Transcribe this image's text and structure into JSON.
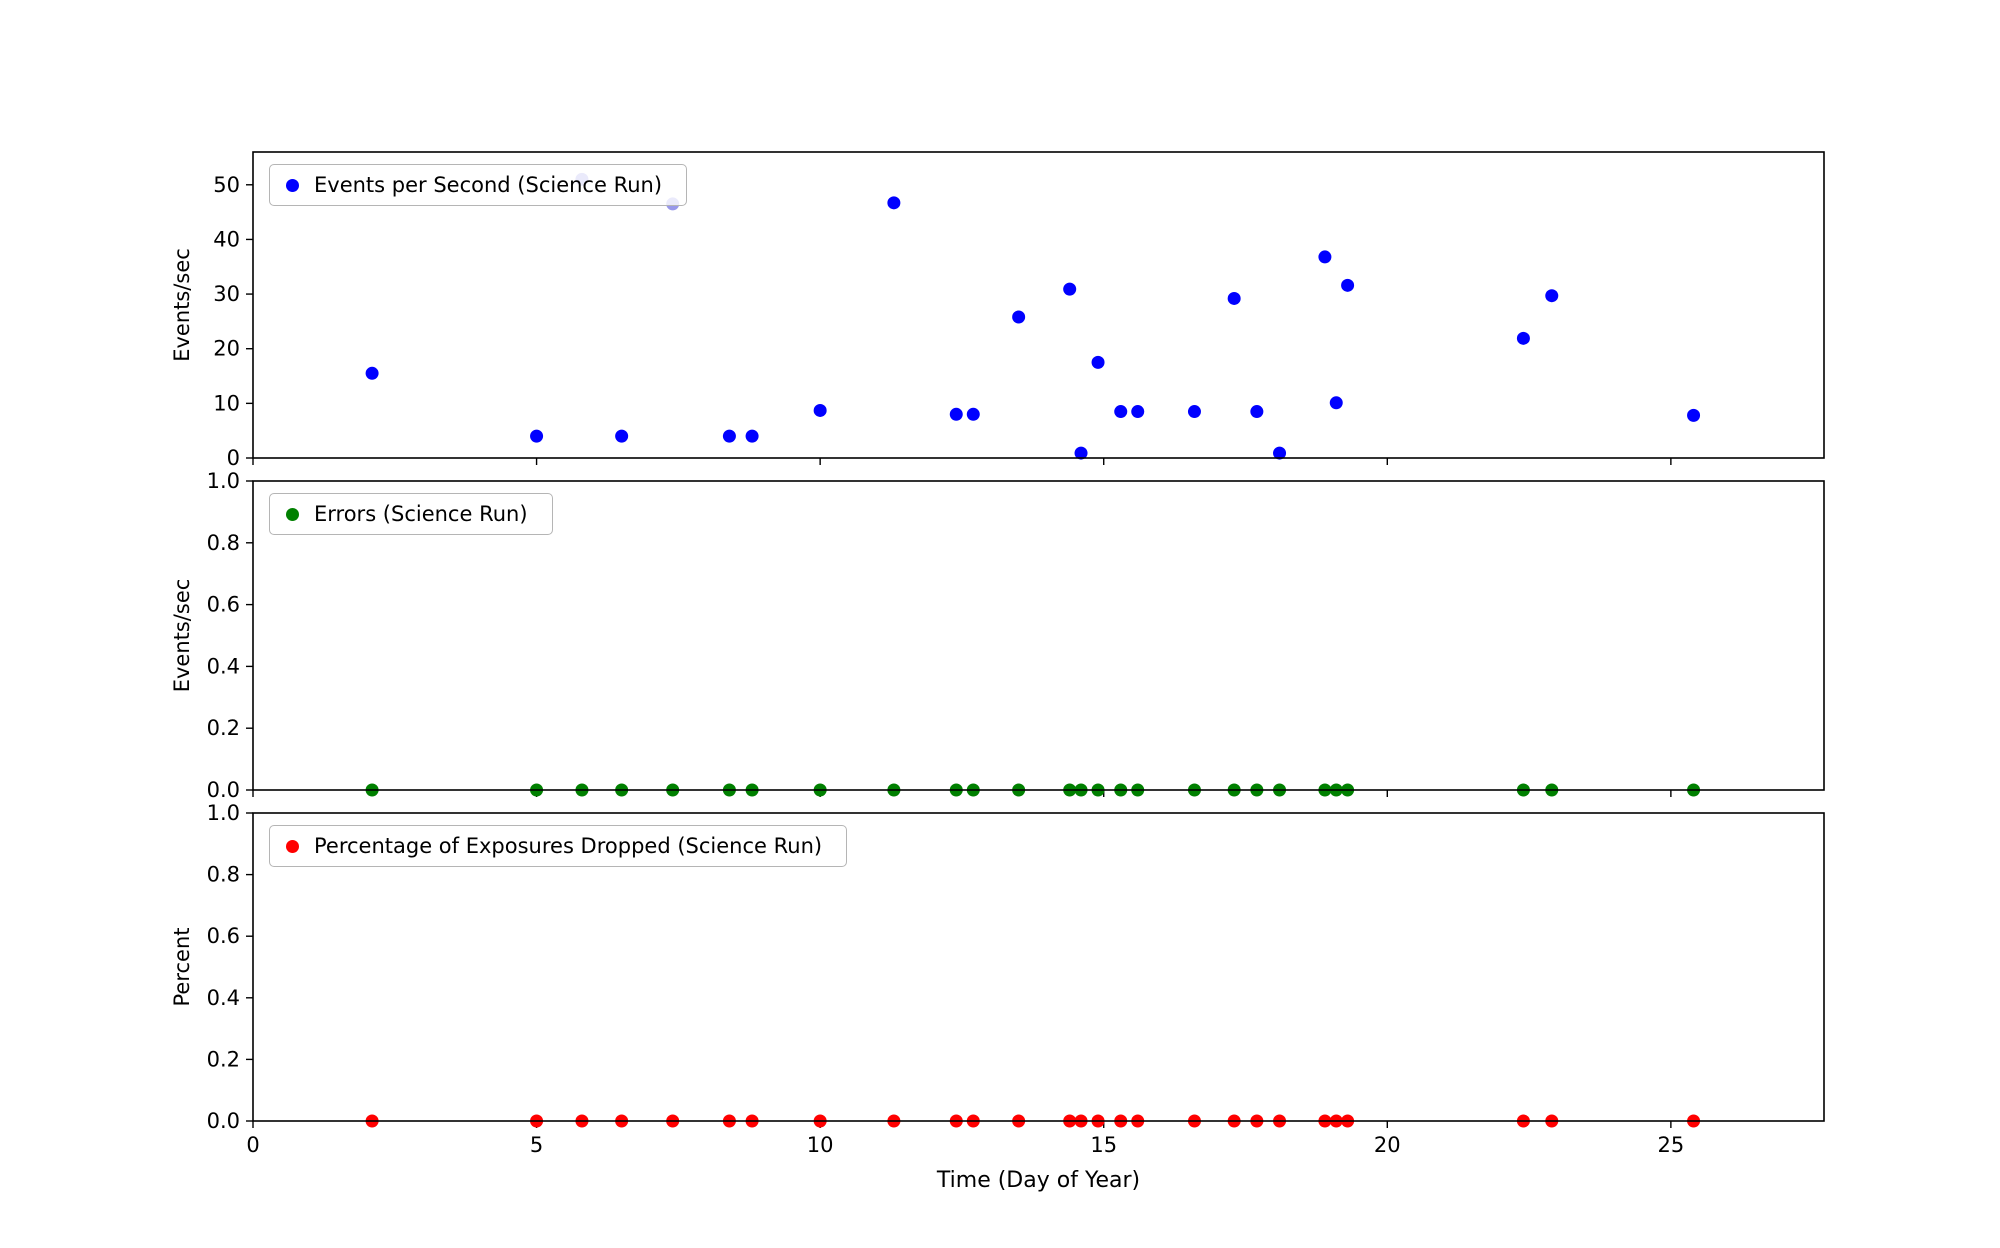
{
  "figure": {
    "background": "#ffffff",
    "xlabel": "Time (Day of Year)",
    "xlim": [
      0,
      27.7
    ],
    "xticks": [
      0,
      5,
      10,
      15,
      20,
      25
    ],
    "xtick_labels": [
      "0",
      "5",
      "10",
      "15",
      "20",
      "25"
    ]
  },
  "chart_data": [
    {
      "type": "scatter",
      "legend": "Events per Second (Science Run)",
      "marker_color": "#0000ff",
      "light_marker_color": "#9898ea",
      "ylabel": "Events/sec",
      "ylim": [
        0,
        56
      ],
      "yticks": [
        0,
        10,
        20,
        30,
        40,
        50
      ],
      "ytick_labels": [
        "0",
        "10",
        "20",
        "30",
        "40",
        "50"
      ],
      "grid": false,
      "legend_position": "upper-left",
      "points": [
        [
          2.1,
          15.5
        ],
        [
          5.0,
          4.0
        ],
        [
          6.5,
          4.0
        ],
        [
          8.4,
          4.0
        ],
        [
          8.8,
          4.0
        ],
        [
          10.0,
          8.7
        ],
        [
          11.3,
          46.7
        ],
        [
          12.4,
          8.0
        ],
        [
          12.7,
          8.0
        ],
        [
          13.5,
          25.8
        ],
        [
          14.4,
          30.9
        ],
        [
          14.6,
          0.9
        ],
        [
          14.9,
          17.5
        ],
        [
          15.3,
          8.5
        ],
        [
          15.6,
          8.5
        ],
        [
          16.6,
          8.5
        ],
        [
          17.3,
          29.2
        ],
        [
          17.7,
          8.5
        ],
        [
          18.1,
          0.9
        ],
        [
          18.9,
          36.8
        ],
        [
          19.1,
          10.1
        ],
        [
          19.3,
          31.6
        ],
        [
          22.4,
          21.9
        ],
        [
          22.9,
          29.7
        ],
        [
          25.4,
          7.8
        ]
      ],
      "light_points": [
        [
          5.8,
          51.0
        ],
        [
          7.4,
          46.5
        ]
      ]
    },
    {
      "type": "scatter",
      "legend": "Errors (Science Run)",
      "marker_color": "#008000",
      "ylabel": "Events/sec",
      "ylim": [
        0,
        1.0
      ],
      "yticks": [
        0.0,
        0.2,
        0.4,
        0.6,
        0.8,
        1.0
      ],
      "ytick_labels": [
        "0.0",
        "0.2",
        "0.4",
        "0.6",
        "0.8",
        "1.0"
      ],
      "grid": false,
      "legend_position": "upper-left",
      "points": [
        [
          2.1,
          0.0
        ],
        [
          5.0,
          0.0
        ],
        [
          5.8,
          0.0
        ],
        [
          6.5,
          0.0
        ],
        [
          7.4,
          0.0
        ],
        [
          8.4,
          0.0
        ],
        [
          8.8,
          0.0
        ],
        [
          10.0,
          0.0
        ],
        [
          11.3,
          0.0
        ],
        [
          12.4,
          0.0
        ],
        [
          12.7,
          0.0
        ],
        [
          13.5,
          0.0
        ],
        [
          14.4,
          0.0
        ],
        [
          14.6,
          0.0
        ],
        [
          14.9,
          0.0
        ],
        [
          15.3,
          0.0
        ],
        [
          15.6,
          0.0
        ],
        [
          16.6,
          0.0
        ],
        [
          17.3,
          0.0
        ],
        [
          17.7,
          0.0
        ],
        [
          18.1,
          0.0
        ],
        [
          18.9,
          0.0
        ],
        [
          19.1,
          0.0
        ],
        [
          19.3,
          0.0
        ],
        [
          22.4,
          0.0
        ],
        [
          22.9,
          0.0
        ],
        [
          25.4,
          0.0
        ]
      ]
    },
    {
      "type": "scatter",
      "legend": "Percentage of Exposures Dropped (Science Run)",
      "marker_color": "#ff0000",
      "ylabel": "Percent",
      "ylim": [
        0,
        1.0
      ],
      "yticks": [
        0.0,
        0.2,
        0.4,
        0.6,
        0.8,
        1.0
      ],
      "ytick_labels": [
        "0.0",
        "0.2",
        "0.4",
        "0.6",
        "0.8",
        "1.0"
      ],
      "grid": false,
      "legend_position": "upper-left",
      "points": [
        [
          2.1,
          0.0
        ],
        [
          5.0,
          0.0
        ],
        [
          5.8,
          0.0
        ],
        [
          6.5,
          0.0
        ],
        [
          7.4,
          0.0
        ],
        [
          8.4,
          0.0
        ],
        [
          8.8,
          0.0
        ],
        [
          10.0,
          0.0
        ],
        [
          11.3,
          0.0
        ],
        [
          12.4,
          0.0
        ],
        [
          12.7,
          0.0
        ],
        [
          13.5,
          0.0
        ],
        [
          14.4,
          0.0
        ],
        [
          14.6,
          0.0
        ],
        [
          14.9,
          0.0
        ],
        [
          15.3,
          0.0
        ],
        [
          15.6,
          0.0
        ],
        [
          16.6,
          0.0
        ],
        [
          17.3,
          0.0
        ],
        [
          17.7,
          0.0
        ],
        [
          18.1,
          0.0
        ],
        [
          18.9,
          0.0
        ],
        [
          19.1,
          0.0
        ],
        [
          19.3,
          0.0
        ],
        [
          22.4,
          0.0
        ],
        [
          22.9,
          0.0
        ],
        [
          25.4,
          0.0
        ]
      ]
    }
  ]
}
